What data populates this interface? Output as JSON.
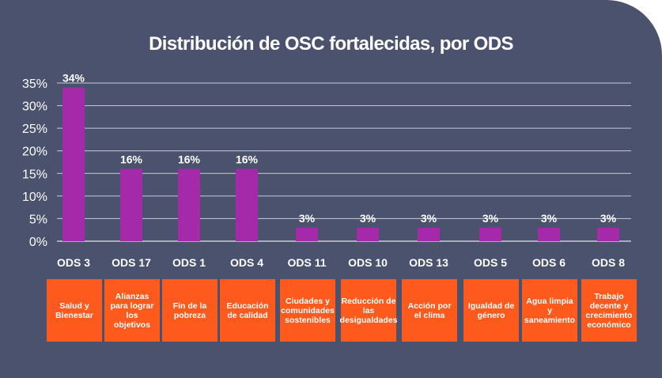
{
  "chart_data": {
    "type": "bar",
    "title": "Distribución de OSC fortalecidas, por ODS",
    "categories": [
      "ODS 3",
      "ODS 17",
      "ODS 1",
      "ODS 4",
      "ODS 11",
      "ODS 10",
      "ODS 13",
      "ODS 5",
      "ODS 6",
      "ODS 8"
    ],
    "values": [
      34,
      16,
      16,
      16,
      3,
      3,
      3,
      3,
      3,
      3
    ],
    "data_labels": [
      "34%",
      "16%",
      "16%",
      "16%",
      "3%",
      "3%",
      "3%",
      "3%",
      "3%",
      "3%"
    ],
    "descriptions": [
      "Salud y Bienestar",
      "Alianzas para lograr los objetivos",
      "Fin de la pobreza",
      "Educación de calidad",
      "Ciudades y comunidades sostenibles",
      "Reducción de las desigualdades",
      "Acción por el clima",
      "Igualdad de género",
      "Agua limpia y saneamiento",
      "Trabajo decente y crecimiento económico"
    ],
    "yticks": [
      "0%",
      "5%",
      "10%",
      "15%",
      "20%",
      "25%",
      "30%",
      "35%"
    ],
    "ylim": [
      0,
      35
    ],
    "grid": true,
    "legend": "none"
  },
  "colors": {
    "background": "#4b526e",
    "bar": "#a52aaa",
    "label_box": "#fe5a1d",
    "grid": "#c8cad6",
    "text": "#ffffff"
  }
}
